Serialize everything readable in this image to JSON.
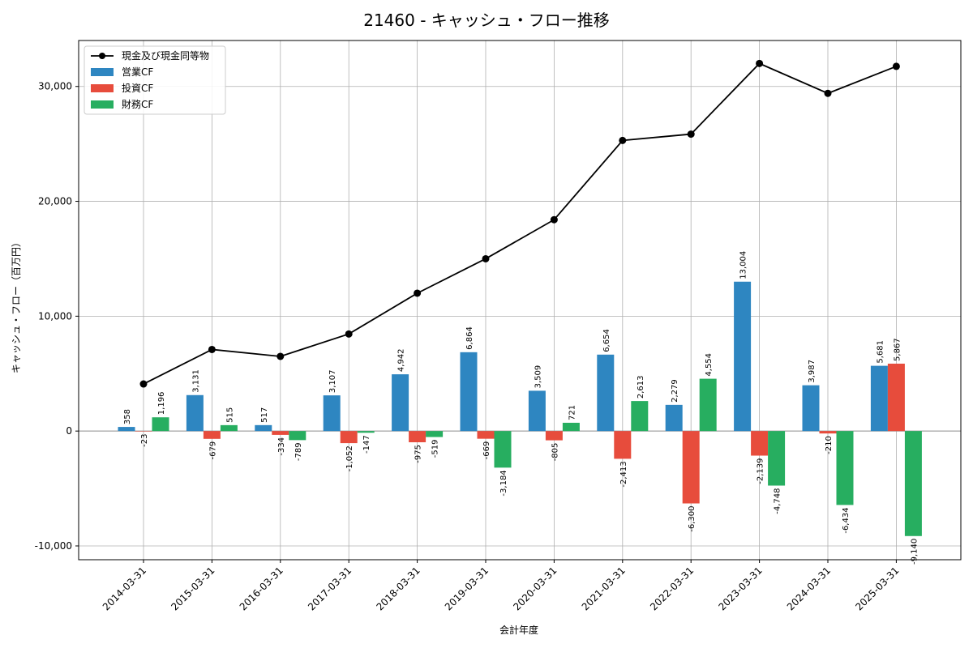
{
  "chart_data": {
    "type": "bar",
    "title": "21460 - キャッシュ・フロー推移",
    "xlabel": "会計年度",
    "ylabel": "キャッシュ・フロー（百万円）",
    "ylim": [
      -11200,
      34000
    ],
    "yticks": [
      -10000,
      0,
      10000,
      20000,
      30000
    ],
    "ytick_labels": [
      "-10,000",
      "0",
      "10,000",
      "20,000",
      "30,000"
    ],
    "grid": true,
    "legend_position": "top-left",
    "categories": [
      "2014-03-31",
      "2015-03-31",
      "2016-03-31",
      "2017-03-31",
      "2018-03-31",
      "2019-03-31",
      "2020-03-31",
      "2021-03-31",
      "2022-03-31",
      "2023-03-31",
      "2024-03-31",
      "2025-03-31"
    ],
    "series": [
      {
        "name": "営業CF",
        "kind": "bar",
        "color": "#2e86c1",
        "values": [
          358,
          3131,
          517,
          3107,
          4942,
          6864,
          3509,
          6654,
          2279,
          13004,
          3987,
          5681
        ],
        "labels": [
          "358",
          "3,131",
          "517",
          "3,107",
          "4,942",
          "6,864",
          "3,509",
          "6,654",
          "2,279",
          "13,004",
          "3,987",
          "5,681"
        ]
      },
      {
        "name": "投資CF",
        "kind": "bar",
        "color": "#e74c3c",
        "values": [
          -23,
          -679,
          -334,
          -1052,
          -975,
          -669,
          -805,
          -2413,
          -6300,
          -2139,
          -210,
          5867
        ],
        "labels": [
          "-23",
          "-679",
          "-334",
          "-1,052",
          "-975",
          "-669",
          "-805",
          "-2,413",
          "-6,300",
          "-2,139",
          "-210",
          "5,867"
        ]
      },
      {
        "name": "財務CF",
        "kind": "bar",
        "color": "#27ae60",
        "values": [
          1196,
          515,
          -789,
          -147,
          -519,
          -3184,
          721,
          2613,
          4554,
          -4748,
          -6434,
          -9140
        ],
        "labels": [
          "1,196",
          "515",
          "-789",
          "-147",
          "-519",
          "-3,184",
          "721",
          "2,613",
          "4,554",
          "-4,748",
          "-6,434",
          "-9,140"
        ]
      },
      {
        "name": "現金及び現金同等物",
        "kind": "line",
        "color": "#000000",
        "values": [
          4100,
          7100,
          6500,
          8450,
          12000,
          15000,
          18400,
          25300,
          25850,
          32000,
          29400,
          31750
        ]
      }
    ]
  }
}
